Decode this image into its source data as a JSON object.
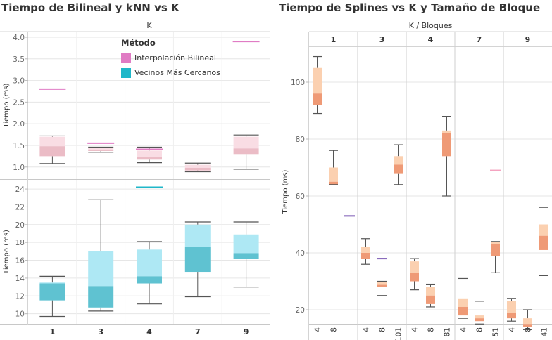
{
  "left_title": "Tiempo de Bilineal y kNN vs K",
  "right_title": "Tiempo de Splines vs K y Tamaño de Bloque",
  "left_header": "K",
  "right_header": "K  /  Bloques",
  "legend": {
    "title": "Método",
    "items": [
      {
        "label": "Interpolación Bilineal",
        "color": "#e07cc4"
      },
      {
        "label": "Vecinos Más Cercanos",
        "color": "#1fb7c9"
      }
    ]
  },
  "colors": {
    "bilinear_light": "#f9dde4",
    "bilinear_dark": "#ebbcc6",
    "knn_light": "#aee8f4",
    "knn_dark": "#5fc2d1",
    "spline_light": "#fbd0b0",
    "spline_dark": "#ef9a76",
    "spline_line_pink": "#f4a3c0",
    "spline_line_purple": "#7d5bb5"
  },
  "chart_data": [
    {
      "type": "box",
      "title": "Tiempo de Bilineal y kNN vs K",
      "xlabel": "",
      "categories": [
        "1",
        "3",
        "4",
        "7",
        "9"
      ],
      "panels": [
        {
          "series": "Interpolación Bilineal",
          "ylabel": "Tiempo (ms)",
          "ylim": [
            0.85,
            4.0
          ],
          "yticks": [
            "1.0",
            "1.5",
            "2.0",
            "2.5",
            "3.0",
            "3.5",
            "4.0"
          ],
          "yticks_values": [
            1.0,
            1.5,
            2.0,
            2.5,
            3.0,
            3.5,
            4.0
          ],
          "boxes": [
            {
              "min": 1.08,
              "q1": 1.25,
              "median": 1.48,
              "q3": 1.7,
              "max": 1.72,
              "outlier": 2.8
            },
            {
              "min": 1.34,
              "q1": 1.37,
              "median": 1.4,
              "q3": 1.44,
              "max": 1.46,
              "outlier": 1.55
            },
            {
              "min": 1.1,
              "q1": 1.17,
              "median": 1.23,
              "q3": 1.38,
              "max": 1.46,
              "outlier": 1.41
            },
            {
              "min": 0.89,
              "q1": 0.92,
              "median": 0.98,
              "q3": 1.05,
              "max": 1.09,
              "outlier": null
            },
            {
              "min": 0.95,
              "q1": 1.3,
              "median": 1.43,
              "q3": 1.7,
              "max": 1.74,
              "outlier": 3.9
            }
          ]
        },
        {
          "series": "Vecinos Más Cercanos",
          "ylabel": "Tiempo (ms)",
          "ylim": [
            9.5,
            24.4
          ],
          "yticks": [
            "10",
            "12",
            "14",
            "16",
            "18",
            "20",
            "22",
            "24"
          ],
          "yticks_values": [
            10,
            12,
            14,
            16,
            18,
            20,
            22,
            24
          ],
          "boxes": [
            {
              "min": 9.7,
              "q1": 11.5,
              "median": 13.4,
              "q3": 13.5,
              "max": 14.2,
              "outlier": null
            },
            {
              "min": 10.3,
              "q1": 10.7,
              "median": 13.1,
              "q3": 17.0,
              "max": 22.8,
              "outlier": null
            },
            {
              "min": 11.1,
              "q1": 13.4,
              "median": 14.2,
              "q3": 17.2,
              "max": 18.1,
              "outlier": 24.2
            },
            {
              "min": 11.9,
              "q1": 14.7,
              "median": 17.5,
              "q3": 20.0,
              "max": 20.3,
              "outlier": null
            },
            {
              "min": 13.0,
              "q1": 16.2,
              "median": 16.8,
              "q3": 18.9,
              "max": 20.3,
              "outlier": null
            }
          ]
        }
      ]
    },
    {
      "type": "box",
      "title": "Tiempo de Splines vs K y Tamaño de Bloque",
      "ylabel": "Tiempo (ms)",
      "ylim": [
        10,
        112
      ],
      "yticks": [
        "20",
        "40",
        "60",
        "80",
        "100"
      ],
      "yticks_values": [
        20,
        40,
        60,
        80,
        100
      ],
      "groups": [
        {
          "k": "1",
          "boxes": [
            {
              "block": "4",
              "min": 89,
              "q1": 92,
              "median": 96,
              "q3": 105,
              "max": 109,
              "line": null
            },
            {
              "block": "8",
              "min": 64,
              "q1": 64,
              "median": 65,
              "q3": 70,
              "max": 76,
              "line": null
            },
            {
              "block": "",
              "min": null,
              "q1": null,
              "median": null,
              "q3": null,
              "max": null,
              "line": 53
            }
          ]
        },
        {
          "k": "3",
          "boxes": [
            {
              "block": "4",
              "min": 36,
              "q1": 38,
              "median": 40,
              "q3": 42,
              "max": 45,
              "line": null
            },
            {
              "block": "8",
              "min": 25,
              "q1": 28,
              "median": 29,
              "q3": 30,
              "max": 30,
              "line": 38
            },
            {
              "block": "101",
              "min": 64,
              "q1": 68,
              "median": 71,
              "q3": 74,
              "max": 78,
              "line": null
            }
          ]
        },
        {
          "k": "4",
          "boxes": [
            {
              "block": "4",
              "min": 27,
              "q1": 30,
              "median": 33,
              "q3": 37,
              "max": 38,
              "line": null
            },
            {
              "block": "8",
              "min": 21,
              "q1": 22,
              "median": 25,
              "q3": 28,
              "max": 29,
              "line": null
            },
            {
              "block": "81",
              "min": 60,
              "q1": 74,
              "median": 82,
              "q3": 83,
              "max": 88,
              "line": null
            }
          ]
        },
        {
          "k": "7",
          "boxes": [
            {
              "block": "4",
              "min": 17,
              "q1": 18,
              "median": 21,
              "q3": 24,
              "max": 31,
              "line": null
            },
            {
              "block": "8",
              "min": 15,
              "q1": 16,
              "median": 17,
              "q3": 18,
              "max": 23,
              "line": null
            },
            {
              "block": "51",
              "min": 33,
              "q1": 39,
              "median": 43,
              "q3": 44,
              "max": 44,
              "line": 69
            }
          ]
        },
        {
          "k": "9",
          "boxes": [
            {
              "block": "4",
              "min": 16,
              "q1": 17,
              "median": 19,
              "q3": 23,
              "max": 24,
              "line": null
            },
            {
              "block": "8",
              "min": 13,
              "q1": 14,
              "median": 15,
              "q3": 17,
              "max": 20,
              "line": null
            },
            {
              "block": "41",
              "min": 32,
              "q1": 41,
              "median": 46,
              "q3": 50,
              "max": 56,
              "line": null
            }
          ]
        }
      ]
    }
  ]
}
